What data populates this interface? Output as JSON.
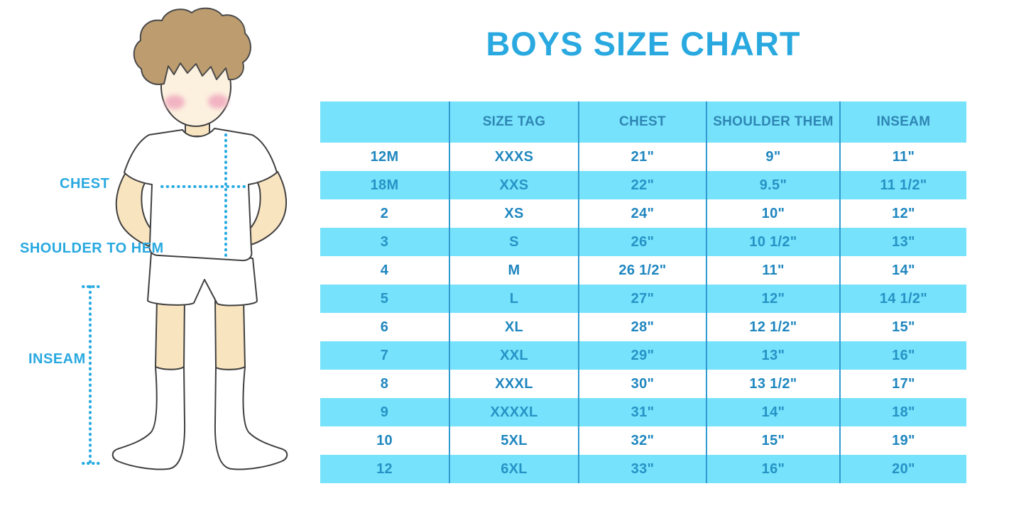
{
  "title": "BOYS SIZE CHART",
  "figure": {
    "chest_label": "CHEST",
    "shoulder_to_hem_label": "SHOULDER TO HEM",
    "inseam_label": "INSEAM"
  },
  "table": {
    "columns": [
      "",
      "SIZE TAG",
      "CHEST",
      "SHOULDER THEM",
      "INSEAM"
    ],
    "rows": [
      [
        "12M",
        "XXXS",
        "21\"",
        "9\"",
        "11\""
      ],
      [
        "18M",
        "XXS",
        "22\"",
        "9.5\"",
        "11 1/2\""
      ],
      [
        "2",
        "XS",
        "24\"",
        "10\"",
        "12\""
      ],
      [
        "3",
        "S",
        "26\"",
        "10 1/2\"",
        "13\""
      ],
      [
        "4",
        "M",
        "26 1/2\"",
        "11\"",
        "14\""
      ],
      [
        "5",
        "L",
        "27\"",
        "12\"",
        "14 1/2\""
      ],
      [
        "6",
        "XL",
        "28\"",
        "12 1/2\"",
        "15\""
      ],
      [
        "7",
        "XXL",
        "29\"",
        "13\"",
        "16\""
      ],
      [
        "8",
        "XXXL",
        "30\"",
        "13 1/2\"",
        "17\""
      ],
      [
        "9",
        "XXXXL",
        "31\"",
        "14\"",
        "18\""
      ],
      [
        "10",
        "5XL",
        "32\"",
        "15\"",
        "19\""
      ],
      [
        "12",
        "6XL",
        "33\"",
        "16\"",
        "20\""
      ]
    ]
  },
  "colors": {
    "accent": "#29A9E0",
    "header_bg": "#77E2FB",
    "alt_row_bg": "#77E2FB",
    "cell_text": "#1E86BF",
    "column_divider": "#2F9BD2",
    "dotted_line": "#29ABE2",
    "skin": "#F9E4C0",
    "face": "#FCF0DF",
    "hair": "#BD9D6F",
    "blush": "#F2B4C3"
  }
}
